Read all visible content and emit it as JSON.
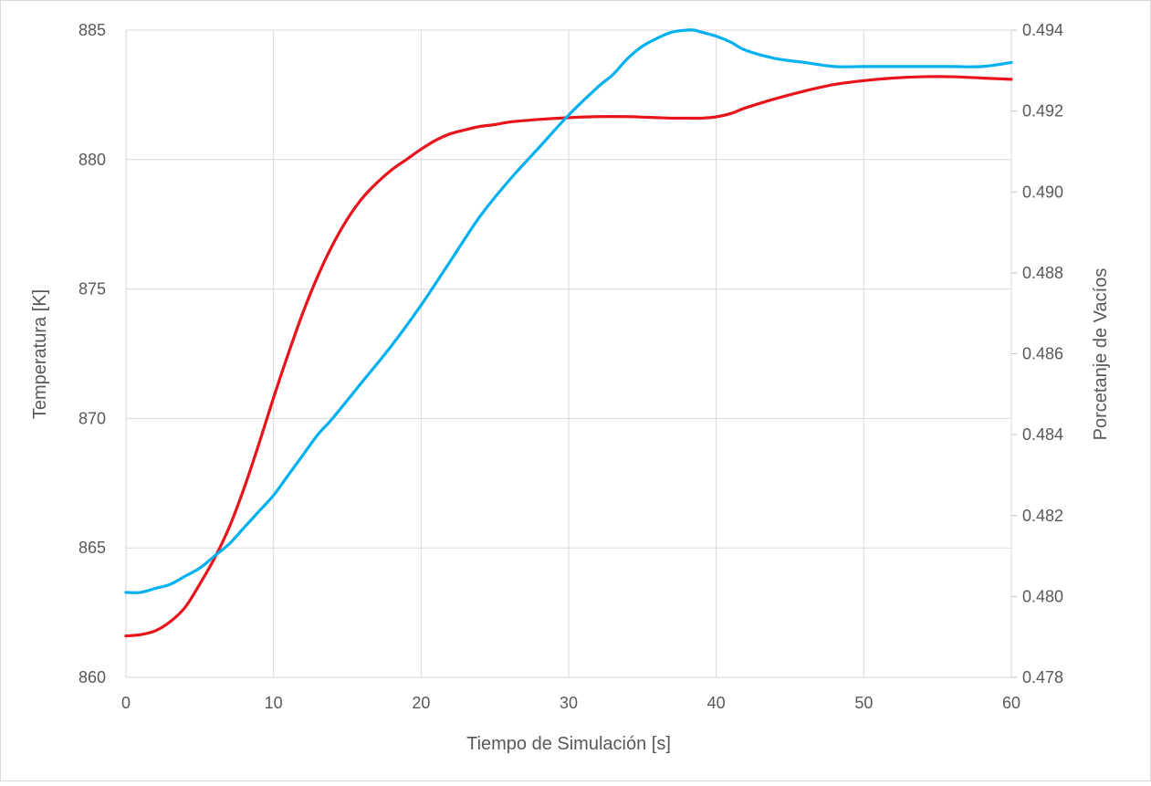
{
  "chart_data": {
    "type": "line",
    "title": "",
    "xlabel": "Tiempo de Simulación [s]",
    "ylabel": "Temperatura [K]",
    "y2label": "Porcetanje de Vacíos",
    "xlim": [
      0,
      60
    ],
    "ylim": [
      860,
      885
    ],
    "y2lim": [
      0.478,
      0.494
    ],
    "x_ticks": [
      0,
      10,
      20,
      30,
      40,
      50,
      60
    ],
    "y_ticks": [
      860,
      865,
      870,
      875,
      880,
      885
    ],
    "y2_ticks": [
      "0.478",
      "0.480",
      "0.482",
      "0.484",
      "0.486",
      "0.488",
      "0.490",
      "0.492",
      "0.494"
    ],
    "grid": true,
    "legend": "none",
    "series": [
      {
        "axis": "left",
        "color": "#e8141c",
        "x": [
          0,
          1,
          2,
          3,
          4,
          5,
          6,
          7,
          8,
          9,
          10,
          11,
          12,
          13,
          14,
          15,
          16,
          17,
          18,
          19,
          20,
          21,
          22,
          23,
          24,
          25,
          26,
          28,
          30,
          32,
          34,
          35,
          36,
          37,
          38,
          39,
          40,
          41,
          42,
          44,
          46,
          48,
          50,
          52,
          54,
          56,
          58,
          60
        ],
        "y": [
          861.6,
          861.65,
          861.8,
          862.15,
          862.7,
          863.6,
          864.6,
          865.8,
          867.3,
          869.0,
          870.8,
          872.5,
          874.1,
          875.5,
          876.7,
          877.7,
          878.5,
          879.1,
          879.6,
          880.0,
          880.4,
          880.75,
          881.0,
          881.15,
          881.28,
          881.35,
          881.45,
          881.55,
          881.62,
          881.66,
          881.66,
          881.64,
          881.62,
          881.6,
          881.6,
          881.6,
          881.65,
          881.78,
          882.0,
          882.35,
          882.65,
          882.9,
          883.05,
          883.15,
          883.2,
          883.2,
          883.15,
          883.1
        ]
      },
      {
        "axis": "right",
        "color": "#00b0f0",
        "x": [
          0,
          1,
          2,
          3,
          4,
          5,
          6,
          7,
          8,
          9,
          10,
          11,
          12,
          13,
          14,
          16,
          18,
          20,
          22,
          24,
          26,
          28,
          30,
          32,
          33,
          34,
          35,
          36,
          37,
          38,
          38.5,
          39,
          40,
          41,
          42,
          44,
          46,
          48,
          50,
          52,
          54,
          56,
          58,
          60
        ],
        "y": [
          0.4801,
          0.4801,
          0.4802,
          0.4803,
          0.4805,
          0.4807,
          0.481,
          0.4813,
          0.4817,
          0.4821,
          0.4825,
          0.483,
          0.4835,
          0.484,
          0.4844,
          0.4853,
          0.4862,
          0.4872,
          0.4883,
          0.4894,
          0.4903,
          0.4911,
          0.4919,
          0.4926,
          0.4929,
          0.4933,
          0.4936,
          0.4938,
          0.49395,
          0.494,
          0.494,
          0.49395,
          0.49385,
          0.4937,
          0.4935,
          0.4933,
          0.4932,
          0.4931,
          0.4931,
          0.4931,
          0.4931,
          0.4931,
          0.4931,
          0.4932
        ]
      }
    ]
  }
}
